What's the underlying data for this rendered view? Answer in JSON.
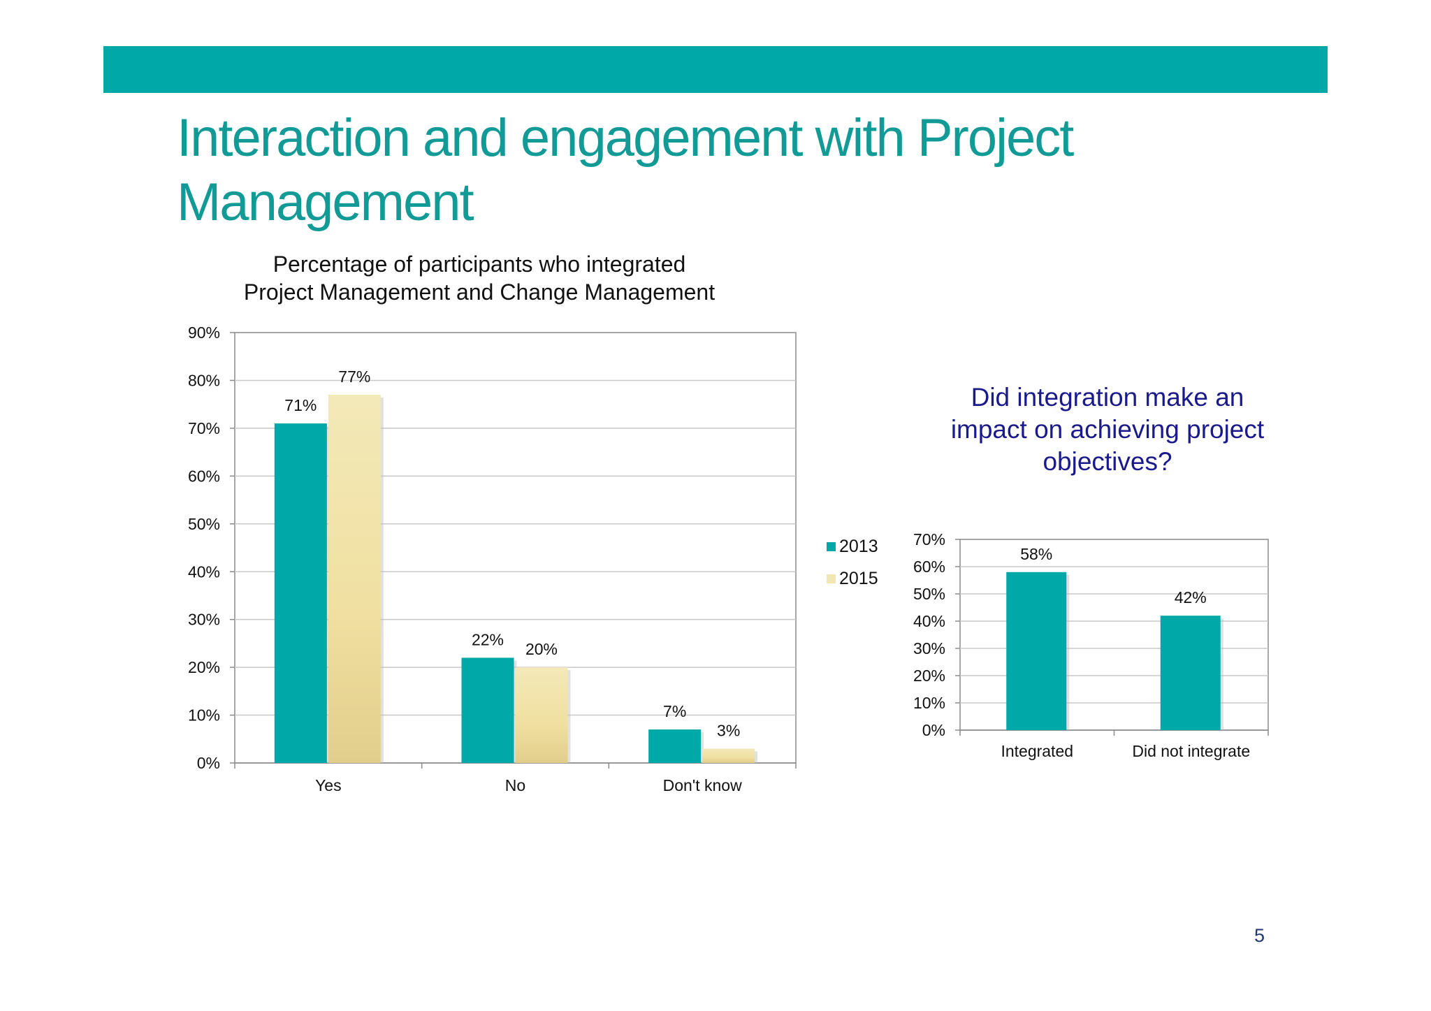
{
  "slide": {
    "title_lines": [
      "Interaction and engagement with Project",
      "Management"
    ],
    "page_number": "5",
    "colors": {
      "accent": "#00A8A8",
      "title": "#119A96",
      "series_2013": "#00A8A8",
      "series_2015": "#F2E6B2",
      "question": "#1A1A8C"
    }
  },
  "chart1": {
    "title_lines": [
      "Percentage of participants who integrated",
      "Project Management and Change Management"
    ],
    "legend": [
      "2013",
      "2015"
    ]
  },
  "chart2": {
    "title_lines": [
      "Did integration make an",
      "impact on achieving project",
      "objectives?"
    ]
  },
  "chart_data": [
    {
      "type": "bar",
      "title": "Percentage of participants who integrated Project Management and Change Management",
      "categories": [
        "Yes",
        "No",
        "Don't know"
      ],
      "series": [
        {
          "name": "2013",
          "values": [
            71,
            22,
            7
          ],
          "labels": [
            "71%",
            "22%",
            "7%"
          ]
        },
        {
          "name": "2015",
          "values": [
            77,
            20,
            3
          ],
          "labels": [
            "77%",
            "20%",
            "3%"
          ]
        }
      ],
      "ylim": [
        0,
        90
      ],
      "yticks": [
        "0%",
        "10%",
        "20%",
        "30%",
        "40%",
        "50%",
        "60%",
        "70%",
        "80%",
        "90%"
      ],
      "grid": true,
      "legend_position": "right"
    },
    {
      "type": "bar",
      "title": "Did integration make an impact on achieving project objectives?",
      "categories": [
        "Integrated",
        "Did not integrate"
      ],
      "series": [
        {
          "values": [
            58,
            42
          ],
          "labels": [
            "58%",
            "42%"
          ]
        }
      ],
      "ylim": [
        0,
        70
      ],
      "yticks": [
        "0%",
        "10%",
        "20%",
        "30%",
        "40%",
        "50%",
        "60%",
        "70%"
      ],
      "grid": true
    }
  ]
}
